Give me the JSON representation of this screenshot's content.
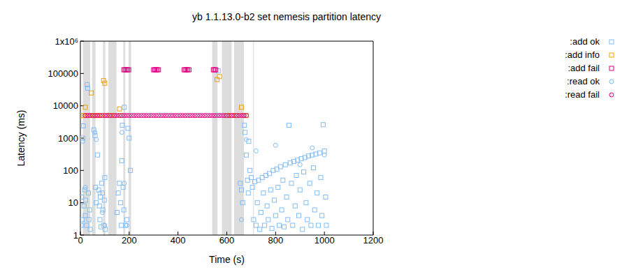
{
  "chart_data": {
    "type": "scatter",
    "title": "yb 1.1.13.0-b2 set nemesis partition latency",
    "x_label": "Time (s)",
    "y_label": "Latency (ms)",
    "log": "y",
    "grid": false,
    "legend": "outside right top",
    "xlim": [
      0,
      1200
    ],
    "ylim": [
      1,
      1000000
    ],
    "xticks": [
      0,
      200,
      400,
      600,
      800,
      1000,
      1200
    ],
    "yticks": [
      1,
      10,
      100,
      1000,
      10000,
      100000,
      {
        "value": 1000000,
        "label": "1x10⁶"
      }
    ],
    "shaded_regions": [
      [
        10,
        40
      ],
      [
        48,
        62
      ],
      [
        93,
        102
      ],
      [
        115,
        148
      ],
      [
        176,
        184
      ],
      [
        198,
        208
      ],
      [
        540,
        562
      ],
      [
        580,
        620
      ],
      [
        630,
        670
      ],
      [
        708,
        711
      ]
    ],
    "series": [
      {
        "name": ":add ok",
        "color": "#82bdf7",
        "marker": "square",
        "x": [
          3,
          5,
          8,
          10,
          12,
          15,
          18,
          20,
          22,
          25,
          28,
          30,
          33,
          35,
          38,
          40,
          55,
          60,
          62,
          65,
          70,
          75,
          78,
          80,
          82,
          85,
          88,
          90,
          92,
          95,
          98,
          100,
          102,
          150,
          155,
          160,
          165,
          168,
          170,
          172,
          175,
          178,
          180,
          185,
          190,
          195,
          200,
          205,
          565,
          655,
          660,
          665,
          670,
          672,
          675,
          680,
          685,
          688,
          690,
          695,
          700,
          705,
          710,
          715,
          720,
          725,
          730,
          735,
          740,
          745,
          750,
          755,
          760,
          765,
          770,
          775,
          780,
          785,
          790,
          795,
          800,
          805,
          810,
          815,
          820,
          825,
          830,
          835,
          840,
          845,
          850,
          855,
          860,
          865,
          870,
          875,
          880,
          885,
          890,
          895,
          900,
          905,
          910,
          915,
          920,
          925,
          930,
          935,
          940,
          945,
          950,
          955,
          960,
          965,
          970,
          975,
          980,
          985,
          990,
          995,
          1000,
          1005,
          1008
        ],
        "values": [
          2,
          15,
          3,
          1000,
          2400,
          8,
          25,
          4,
          12,
          2,
          45000,
          35000,
          20,
          3,
          6,
          1.5,
          1800,
          1200,
          30,
          10,
          300,
          25,
          8,
          3,
          15,
          1.8,
          40,
          20,
          6,
          2,
          12,
          60,
          1.5,
          5,
          20,
          40,
          10,
          2,
          200,
          2500,
          30,
          6,
          9000,
          2,
          3,
          2000,
          1000,
          100,
          120000,
          40,
          25,
          10,
          5000,
          2500,
          1500,
          300,
          50,
          20,
          800,
          100,
          60,
          30,
          3,
          45,
          2,
          10,
          50,
          1.5,
          5,
          60,
          20,
          2,
          70,
          8,
          3,
          80,
          25,
          1.6,
          100,
          12,
          4,
          110,
          30,
          2,
          130,
          6,
          50,
          1.8,
          150,
          15,
          3,
          2500,
          170,
          40,
          2,
          190,
          8,
          70,
          210,
          4,
          25,
          230,
          1.5,
          90,
          250,
          10,
          3,
          280,
          40,
          2,
          300,
          120,
          6,
          320,
          20,
          2,
          350,
          60,
          4,
          2600,
          400,
          15,
          2
        ]
      },
      {
        "name": ":add info",
        "color": "#f0a000",
        "marker": "square",
        "x": [
          5,
          15,
          20,
          25,
          35,
          45,
          50,
          60,
          70,
          80,
          95,
          100,
          105,
          120,
          140,
          160,
          165,
          560,
          570,
          600,
          620,
          640,
          660,
          670,
          680
        ],
        "values": [
          5000,
          5000,
          9000,
          5000,
          5000,
          25000,
          5000,
          5000,
          5000,
          5000,
          60000,
          50000,
          5000,
          5000,
          5000,
          8000,
          5000,
          65000,
          80000,
          5000,
          5000,
          5000,
          9000,
          5000,
          5000
        ]
      },
      {
        "name": ":add fail",
        "color": "#e0007c",
        "marker": "square",
        "x": [
          178,
          183,
          188,
          193,
          198,
          300,
          305,
          310,
          315,
          320,
          425,
          430,
          435,
          440,
          445,
          545,
          550,
          555
        ],
        "values": [
          130000,
          130000,
          130000,
          130000,
          130000,
          130000,
          130000,
          130000,
          130000,
          130000,
          130000,
          130000,
          130000,
          130000,
          130000,
          130000,
          130000,
          130000
        ]
      },
      {
        "name": ":read ok",
        "color": "#82bdf7",
        "marker": "circle",
        "x": [
          10,
          20,
          60,
          65,
          80,
          90,
          100,
          170,
          180,
          190,
          660,
          680,
          720,
          800,
          900,
          950,
          1000
        ],
        "values": [
          800,
          30,
          1500,
          900,
          20,
          5,
          2,
          1500,
          40,
          2,
          3,
          900,
          400,
          600,
          150,
          500,
          300
        ]
      },
      {
        "name": ":read fail",
        "color": "#e0007c",
        "marker": "circle",
        "x": [
          20,
          30,
          40,
          50,
          60,
          70,
          80,
          90,
          100,
          110,
          120,
          130,
          140,
          150,
          160,
          170,
          180,
          190,
          200,
          210,
          220,
          230,
          240,
          250,
          260,
          270,
          280,
          290,
          300,
          310,
          320,
          330,
          340,
          350,
          360,
          370,
          380,
          390,
          400,
          410,
          420,
          430,
          440,
          450,
          460,
          470,
          480,
          490,
          500,
          510,
          520,
          530,
          540,
          550,
          560,
          570,
          580,
          590,
          600,
          610,
          620,
          630,
          640,
          650,
          660,
          670,
          680
        ],
        "values": [
          5000,
          5000,
          5000,
          5000,
          5000,
          5000,
          5000,
          5000,
          5000,
          5000,
          5000,
          5000,
          5000,
          5000,
          5000,
          5000,
          5000,
          5000,
          5000,
          5000,
          5000,
          5000,
          5000,
          5000,
          5000,
          5000,
          5000,
          5000,
          5000,
          5000,
          5000,
          5000,
          5000,
          5000,
          5000,
          5000,
          5000,
          5000,
          5000,
          5000,
          5000,
          5000,
          5000,
          5000,
          5000,
          5000,
          5000,
          5000,
          5000,
          5000,
          5000,
          5000,
          5000,
          5000,
          5000,
          5000,
          5000,
          5000,
          5000,
          5000,
          5000,
          5000,
          5000,
          5000,
          5000,
          5000,
          5000
        ]
      }
    ]
  }
}
